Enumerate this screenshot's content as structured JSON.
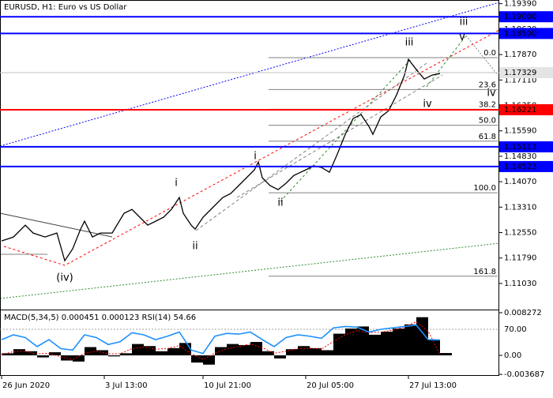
{
  "chart_data": [
    {
      "type": "line",
      "title": "EURUSD, H1:  Euro vs US Dollar",
      "color": "#000000",
      "x": [
        0,
        3,
        6,
        8,
        11,
        14,
        16,
        18,
        20,
        21,
        23,
        25,
        28,
        31,
        33,
        35,
        37,
        39,
        41,
        43,
        45,
        46,
        48,
        49,
        51,
        53,
        56,
        58,
        60,
        62,
        64,
        65,
        66,
        68,
        70,
        72,
        74,
        77,
        79,
        81,
        83,
        85,
        87,
        89,
        91,
        93,
        94,
        96,
        98,
        100,
        102,
        103,
        105,
        107,
        109,
        111
      ],
      "values": [
        1.123,
        1.12418,
        1.12772,
        1.12536,
        1.12418,
        1.12536,
        1.1171,
        1.12064,
        1.12654,
        1.1289,
        1.12418,
        1.12536,
        1.12536,
        1.13126,
        1.13244,
        1.13008,
        1.12772,
        1.1289,
        1.13008,
        1.13244,
        1.13598,
        1.13126,
        1.12772,
        1.12654,
        1.13008,
        1.13244,
        1.13598,
        1.13716,
        1.13952,
        1.14188,
        1.14424,
        1.1466,
        1.14188,
        1.13952,
        1.13834,
        1.14023,
        1.14259,
        1.14424,
        1.14542,
        1.14495,
        1.14354,
        1.14896,
        1.15486,
        1.15958,
        1.16076,
        1.15722,
        1.15486,
        1.16006,
        1.16194,
        1.16666,
        1.17256,
        1.17728,
        1.17422,
        1.17138,
        1.17256,
        1.17304
      ],
      "xlim": [
        0,
        126
      ],
      "xticks": [
        {
          "value": 0,
          "label": "26 Jun 2020"
        },
        {
          "value": 26,
          "label": "3 Jul 13:00"
        },
        {
          "value": 51,
          "label": "10 Jul 21:00"
        },
        {
          "value": 77,
          "label": "20 Jul 05:00"
        },
        {
          "value": 103,
          "label": "27 Jul 13:00"
        }
      ],
      "ylim": [
        1.1025,
        1.195
      ],
      "yticks": [
        {
          "value": 1.1939,
          "label": "1.19390"
        },
        {
          "value": 1.1863,
          "label": "1.18630"
        },
        {
          "value": 1.1787,
          "label": "1.17870"
        },
        {
          "value": 1.1711,
          "label": "1.17110"
        },
        {
          "value": 1.1635,
          "label": "1.16350"
        },
        {
          "value": 1.1559,
          "label": "1.15590"
        },
        {
          "value": 1.1483,
          "label": "1.14830"
        },
        {
          "value": 1.1407,
          "label": "1.14070"
        },
        {
          "value": 1.1331,
          "label": "1.13310"
        },
        {
          "value": 1.1255,
          "label": "1.12550"
        },
        {
          "value": 1.1179,
          "label": "1.11790"
        },
        {
          "value": 1.1103,
          "label": "1.11030"
        }
      ],
      "current_price": 1.17329,
      "levels": [
        {
          "value": 1.19,
          "label": "1.19000",
          "color": "#0000ff"
        },
        {
          "value": 1.185,
          "label": "1.18500",
          "color": "#0000ff"
        },
        {
          "value": 1.16221,
          "label": "1.16221",
          "color": "#ff0000"
        },
        {
          "value": 1.15113,
          "label": "1.15113",
          "color": "#0000ff"
        },
        {
          "value": 1.14523,
          "label": "1.14523",
          "color": "#0000ff"
        }
      ],
      "fibo": {
        "start": 1.1374,
        "end": 1.17776,
        "color": "#808080",
        "levels": [
          {
            "value": 0,
            "label": "0.0"
          },
          23.6,
          38.2,
          {
            "value": 50,
            "label": "50.0"
          },
          61.8,
          {
            "value": 100,
            "label": "100.0"
          },
          161.8
        ]
      },
      "wave_labels": [
        {
          "text": "(iv)",
          "color": "#e00000"
        },
        {
          "text": "i",
          "color": "#707070"
        },
        {
          "text": "ii",
          "color": "#707070"
        },
        {
          "text": "i",
          "color": "#3a9a20"
        },
        {
          "text": "ii",
          "color": "#3a9a20"
        },
        {
          "text": "iii",
          "color": "#3a9a20"
        },
        {
          "text": "iv",
          "color": "#3a9a20"
        },
        {
          "text": "v",
          "color": "#3a9a20"
        },
        {
          "text": "iii",
          "color": "#707070"
        },
        {
          "text": "iv",
          "color": "#707070"
        }
      ]
    },
    {
      "type": "macd",
      "title": "MACD(5,34,5) 0.000451 0.000123 RSI(14) 54.66",
      "x": [
        0,
        3,
        6,
        9,
        12,
        15,
        18,
        21,
        24,
        27,
        30,
        33,
        36,
        39,
        42,
        45,
        48,
        51,
        54,
        57,
        60,
        63,
        66,
        69,
        72,
        75,
        78,
        81,
        84,
        87,
        90,
        93,
        96,
        99,
        102,
        105,
        108,
        111
      ],
      "series": [
        {
          "style": "histogram",
          "color": "#000000",
          "values": [
            0.0004,
            0.0012,
            0.0008,
            -0.0004,
            0.0006,
            -0.001,
            -0.0012,
            0.0016,
            0.001,
            -0.0002,
            0.0004,
            0.0022,
            0.0018,
            0.0008,
            0.0014,
            0.0024,
            -0.0014,
            -0.0018,
            0.0016,
            0.0022,
            0.002,
            0.0026,
            0.0008,
            -0.0006,
            0.0012,
            0.0018,
            0.0014,
            0.001,
            0.0042,
            0.0052,
            0.0056,
            0.004,
            0.0046,
            0.0052,
            0.006,
            0.0074,
            0.003,
            0.000451
          ]
        },
        {
          "style": "dotted",
          "color": "#ff0000",
          "values": [
            0.0002,
            0.0007,
            0.0008,
            0.0003,
            0.0004,
            -0.0003,
            -0.0008,
            0.0004,
            0.0008,
            0.0003,
            0.0003,
            0.0013,
            0.0016,
            0.0012,
            0.0013,
            0.0019,
            0.0003,
            -0.0008,
            0.0004,
            0.0013,
            0.0017,
            0.0022,
            0.0015,
            0.0004,
            0.0008,
            0.0013,
            0.0014,
            0.0012,
            0.0027,
            0.004,
            0.0048,
            0.0044,
            0.0045,
            0.0049,
            0.0055,
            0.0065,
            0.0047,
            0.000123
          ]
        },
        {
          "style": "line",
          "color": "#1e90ff",
          "axis": "y2",
          "values": [
            55,
            62,
            58,
            45,
            55,
            42,
            40,
            62,
            58,
            48,
            52,
            65,
            62,
            55,
            60,
            66,
            40,
            35,
            60,
            64,
            63,
            66,
            55,
            45,
            58,
            62,
            60,
            57,
            72,
            74,
            73,
            66,
            70,
            72,
            74,
            76,
            55,
            54.66
          ]
        }
      ],
      "ylim": [
        -0.00383,
        0.00873
      ],
      "yticks": [
        0.008272,
        {
          "value": 0,
          "label": "0.00"
        },
        -0.003687
      ],
      "y2lim": [
        3.7,
        97.4
      ],
      "y2ticks": [
        {
          "value": 70,
          "label": "70.00"
        }
      ]
    }
  ]
}
